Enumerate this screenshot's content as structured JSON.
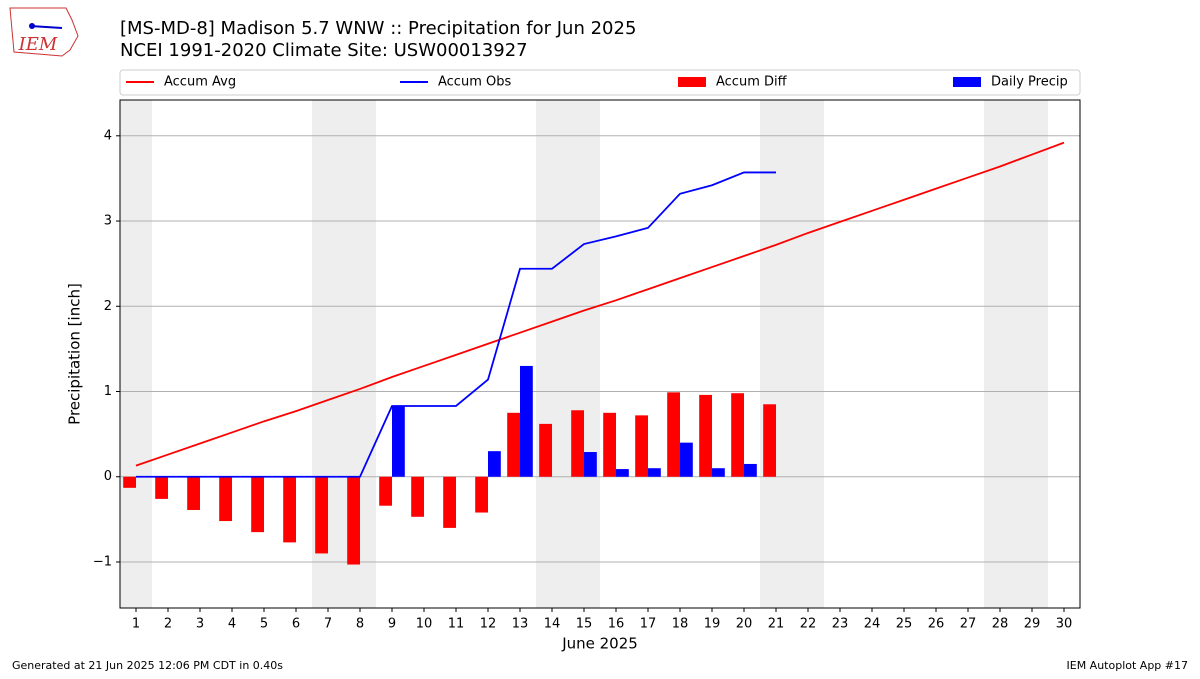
{
  "chart_data": {
    "type": "combo",
    "title": "[MS-MD-8] Madison 5.7 WNW :: Precipitation for Jun 2025",
    "subtitle": "NCEI 1991-2020 Climate Site: USW00013927",
    "logo_text": "IEM",
    "x_label": "June 2025",
    "y_label": "Precipitation [inch]",
    "footer_left": "Generated at 21 Jun 2025 12:06 PM CDT in 0.40s",
    "footer_right": "IEM Autoplot App #17",
    "x": [
      1,
      2,
      3,
      4,
      5,
      6,
      7,
      8,
      9,
      10,
      11,
      12,
      13,
      14,
      15,
      16,
      17,
      18,
      19,
      20,
      21,
      22,
      23,
      24,
      25,
      26,
      27,
      28,
      29,
      30
    ],
    "xlim": [
      0.5,
      30.5
    ],
    "xticks": [
      1,
      2,
      3,
      4,
      5,
      6,
      7,
      8,
      9,
      10,
      11,
      12,
      13,
      14,
      15,
      16,
      17,
      18,
      19,
      20,
      21,
      22,
      23,
      24,
      25,
      26,
      27,
      28,
      29,
      30
    ],
    "ylim": [
      -1.54,
      4.42
    ],
    "yticks": [
      {
        "value": -1,
        "label": "−1"
      },
      0,
      1,
      2,
      3,
      4
    ],
    "grid": true,
    "shaded_ranges": [
      [
        0.5,
        1.5
      ],
      [
        6.5,
        8.5
      ],
      [
        13.5,
        15.5
      ],
      [
        20.5,
        22.5
      ],
      [
        27.5,
        29.5
      ]
    ],
    "shade_color": "#eeeeee",
    "series": [
      {
        "name": "Accum Avg",
        "type": "line",
        "color": "#ff0000",
        "values": [
          0.13,
          0.26,
          0.39,
          0.52,
          0.65,
          0.77,
          0.9,
          1.03,
          1.17,
          1.3,
          1.43,
          1.56,
          1.69,
          1.82,
          1.95,
          2.07,
          2.2,
          2.33,
          2.46,
          2.59,
          2.72,
          2.86,
          2.99,
          3.12,
          3.25,
          3.38,
          3.51,
          3.64,
          3.78,
          3.92
        ]
      },
      {
        "name": "Accum Obs",
        "type": "line",
        "color": "#0000ff",
        "values": [
          0,
          0,
          0,
          0,
          0,
          0,
          0,
          0,
          0.83,
          0.83,
          0.83,
          1.14,
          2.44,
          2.44,
          2.73,
          2.82,
          2.92,
          3.32,
          3.42,
          3.57,
          3.57,
          null,
          null,
          null,
          null,
          null,
          null,
          null,
          null,
          null
        ]
      },
      {
        "name": "Accum Diff",
        "type": "bar",
        "color": "#ff0000",
        "values": [
          -0.13,
          -0.26,
          -0.39,
          -0.52,
          -0.65,
          -0.77,
          -0.9,
          -1.03,
          -0.34,
          -0.47,
          -0.6,
          -0.42,
          0.75,
          0.62,
          0.78,
          0.75,
          0.72,
          0.99,
          0.96,
          0.98,
          0.85,
          null,
          null,
          null,
          null,
          null,
          null,
          null,
          null,
          null
        ]
      },
      {
        "name": "Daily Precip",
        "type": "bar",
        "color": "#0000ff",
        "values": [
          0,
          0,
          0,
          0,
          0,
          0,
          0,
          0,
          0.83,
          0,
          0,
          0.3,
          1.3,
          0,
          0.29,
          0.09,
          0.1,
          0.4,
          0.1,
          0.15,
          0,
          null,
          null,
          null,
          null,
          null,
          null,
          null,
          null,
          null
        ]
      }
    ]
  }
}
